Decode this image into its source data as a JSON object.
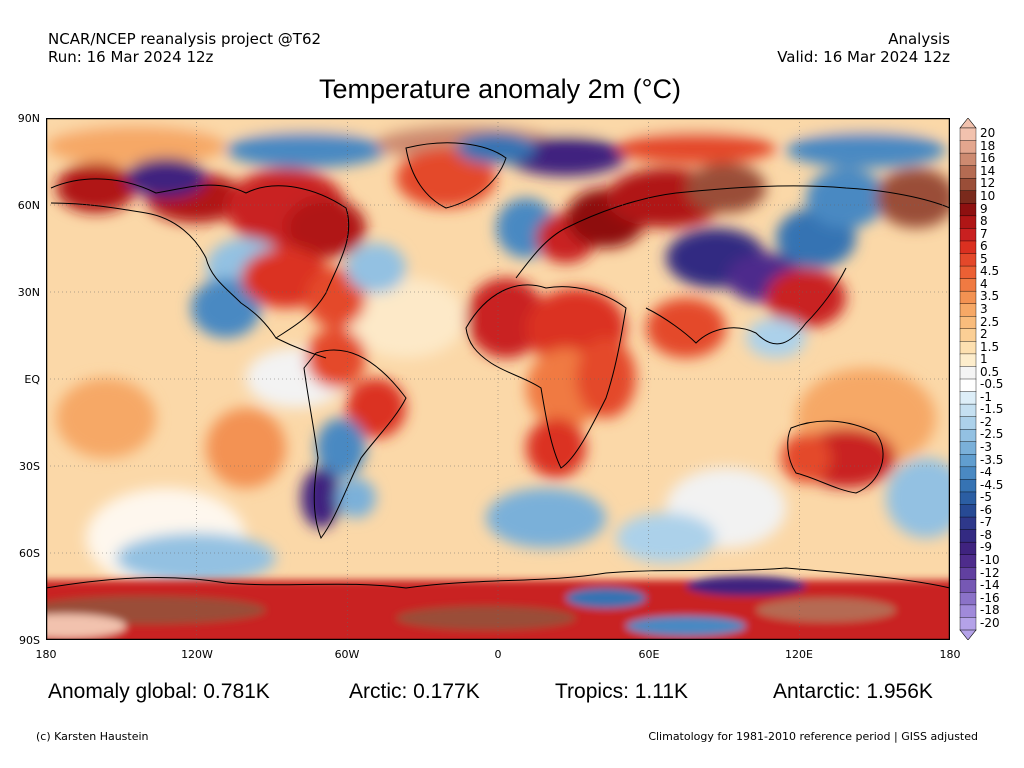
{
  "header": {
    "left_line1": "NCAR/NCEP reanalysis project @T62",
    "left_line2": "Run: 16 Mar 2024 12z",
    "right_line1": "Analysis",
    "right_line2": "Valid: 16 Mar 2024 12z"
  },
  "title": "Temperature anomaly 2m (°C)",
  "map": {
    "lat_labels": [
      "90N",
      "60N",
      "30N",
      "EQ",
      "30S",
      "60S",
      "90S"
    ],
    "lon_labels": [
      "180",
      "120W",
      "60W",
      "0",
      "60E",
      "120E",
      "180"
    ]
  },
  "colorbar": {
    "labels": [
      "20",
      "18",
      "16",
      "14",
      "12",
      "10",
      "9",
      "8",
      "7",
      "6",
      "5",
      "4.5",
      "4",
      "3.5",
      "3",
      "2.5",
      "2",
      "1.5",
      "1",
      "0.5",
      "-0.5",
      "-1",
      "-1.5",
      "-2",
      "-2.5",
      "-3",
      "-3.5",
      "-4",
      "-4.5",
      "-5",
      "-6",
      "-7",
      "-8",
      "-9",
      "-10",
      "-12",
      "-14",
      "-16",
      "-18",
      "-20"
    ],
    "colors": [
      "#f2c2ae",
      "#e3a68e",
      "#cd8a70",
      "#b56b52",
      "#9a4e38",
      "#7a2a1c",
      "#8e1010",
      "#b01616",
      "#c92020",
      "#db3020",
      "#e4482a",
      "#ec6034",
      "#f07a42",
      "#f39252",
      "#f6a866",
      "#f9bc7c",
      "#fbcf95",
      "#fde0b0",
      "#fdedcc",
      "#f4f4f4",
      "#ffffff",
      "#ddeef8",
      "#c5e0f1",
      "#acd1ea",
      "#93c1e2",
      "#7ab0d9",
      "#619ecf",
      "#4a89c2",
      "#3673b3",
      "#2b5ea3",
      "#274a94",
      "#2e388a",
      "#332a82",
      "#3f237f",
      "#4e2c8c",
      "#6140a0",
      "#7658b4",
      "#8b72c8",
      "#a08ada",
      "#b4a2e8"
    ]
  },
  "stats": {
    "global": "Anomaly global: 0.781K",
    "arctic": "Arctic: 0.177K",
    "tropics": "Tropics: 1.11K",
    "antarctic": "Antarctic: 1.956K"
  },
  "footer": {
    "left": "(c) Karsten Haustein",
    "right": "Climatology for 1981-2010 reference period | GISS adjusted"
  }
}
